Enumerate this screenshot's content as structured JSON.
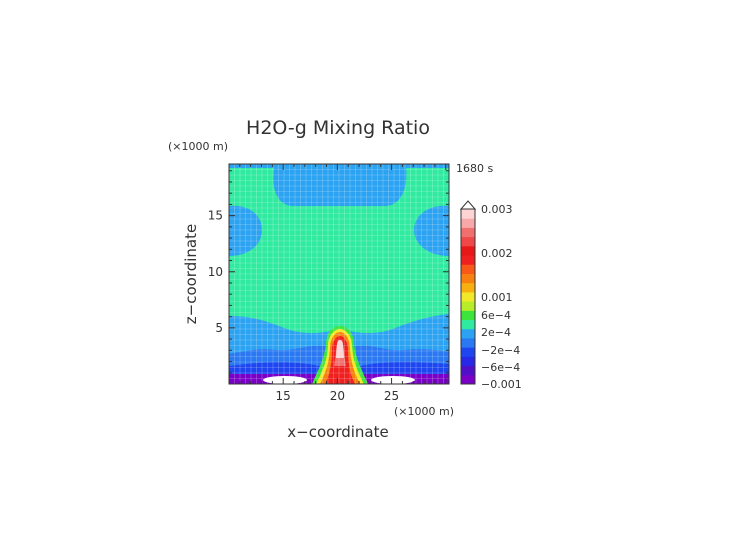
{
  "chart_data": {
    "type": "heatmap",
    "title": "H2O-g Mixing Ratio",
    "subtitle_units_y": "(×1000 m)",
    "xunits": "(×1000 m)",
    "xlabel": "x−coordinate",
    "ylabel": "z−coordinate",
    "time_label": "1680 s",
    "xlim": [
      10,
      30.3
    ],
    "ylim": [
      0,
      19.6
    ],
    "xticks": [
      "15",
      "20",
      "25"
    ],
    "xtick_values": [
      15,
      20,
      25
    ],
    "yticks": [
      "5",
      "10",
      "15"
    ],
    "ytick_values": [
      5,
      10,
      15
    ],
    "colorbar": {
      "labels": [
        "0.003",
        "0.002",
        "0.001",
        "6e−4",
        "2e−4",
        "−2e−4",
        "−6e−4",
        "−0.001"
      ],
      "bins": [
        {
          "lo": -0.0012,
          "hi": -0.001,
          "color": "#7a00c8"
        },
        {
          "lo": -0.001,
          "hi": -0.0008,
          "color": "#5010c8"
        },
        {
          "lo": -0.0008,
          "hi": -0.0006,
          "color": "#2828e6"
        },
        {
          "lo": -0.0006,
          "hi": -0.0004,
          "color": "#1e46f0"
        },
        {
          "lo": -0.0004,
          "hi": -0.0002,
          "color": "#2a78f2"
        },
        {
          "lo": -0.0002,
          "hi": 0.0,
          "color": "#2ca2f2"
        },
        {
          "lo": 0.0,
          "hi": 0.0002,
          "color": "#30eaa0"
        },
        {
          "lo": 0.0002,
          "hi": 0.0004,
          "color": "#3ce43c"
        },
        {
          "lo": 0.0004,
          "hi": 0.0006,
          "color": "#b8ec28"
        },
        {
          "lo": 0.0006,
          "hi": 0.0008,
          "color": "#f0e828"
        },
        {
          "lo": 0.0008,
          "hi": 0.001,
          "color": "#f8b010"
        },
        {
          "lo": 0.001,
          "hi": 0.0013,
          "color": "#f88010"
        },
        {
          "lo": 0.0013,
          "hi": 0.0017,
          "color": "#f85818"
        },
        {
          "lo": 0.0017,
          "hi": 0.002,
          "color": "#f02020"
        },
        {
          "lo": 0.002,
          "hi": 0.0023,
          "color": "#e81818"
        },
        {
          "lo": 0.0023,
          "hi": 0.0026,
          "color": "#f04848"
        },
        {
          "lo": 0.0026,
          "hi": 0.0028,
          "color": "#f07070"
        },
        {
          "lo": 0.0028,
          "hi": 0.003,
          "color": "#f8a8a8"
        },
        {
          "lo": 0.003,
          "hi": 0.0033,
          "color": "#fcd4d4"
        }
      ]
    },
    "regions": [
      {
        "name": "background",
        "color": "#30eaa0",
        "value_range": [
          0,
          0.0002
        ]
      },
      {
        "name": "upper-layer",
        "color": "#2ca2f2",
        "value_range": [
          -0.0002,
          0
        ]
      },
      {
        "name": "lower-layer",
        "color": "#2ca2f2",
        "value_range": [
          -0.0002,
          0
        ]
      },
      {
        "name": "near-surface-band",
        "color": "#1e46f0",
        "value_range": [
          -0.0006,
          -0.0004
        ]
      },
      {
        "name": "surface-band",
        "color": "#7a00c8",
        "value_range": [
          -0.0012,
          -0.001
        ]
      },
      {
        "name": "plume-core",
        "color": "#f02020",
        "value_range": [
          0.0017,
          0.002
        ]
      },
      {
        "name": "plume-peak",
        "color": "#fcd4d4",
        "value_range": [
          0.003,
          0.0033
        ]
      }
    ],
    "grid": true
  }
}
